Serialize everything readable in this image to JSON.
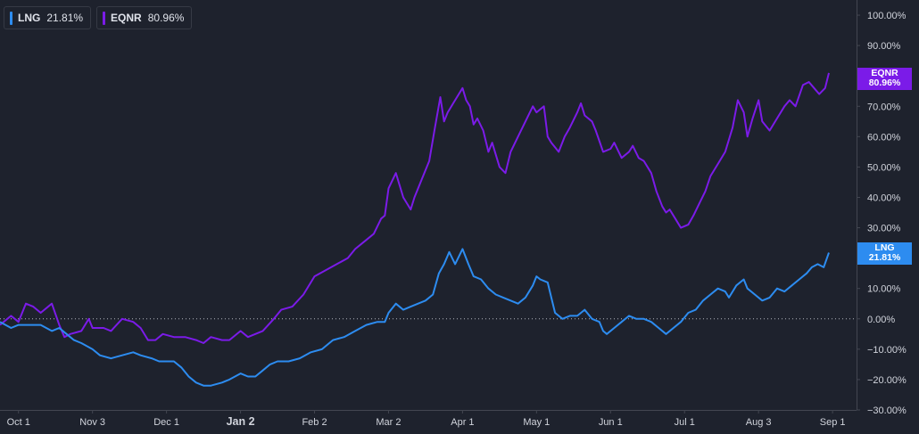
{
  "legend": [
    {
      "name": "LNG",
      "value": "21.81%",
      "color": "#2d8cf0"
    },
    {
      "name": "EQNR",
      "value": "80.96%",
      "color": "#7b1be8"
    }
  ],
  "tags": {
    "eqnr": {
      "name": "EQNR",
      "value": "80.96%"
    },
    "lng": {
      "name": "LNG",
      "value": "21.81%"
    }
  },
  "chart_data": {
    "type": "line",
    "xlim": [
      -0.25,
      11.3
    ],
    "ylim": [
      -30,
      105
    ],
    "y_ticks": [
      100,
      90,
      80,
      70,
      60,
      50,
      40,
      30,
      20,
      10,
      0,
      -10,
      -20,
      -30
    ],
    "y_tick_labels": [
      "100.00%",
      "90.00%",
      "80.00%",
      "70.00%",
      "60.00%",
      "50.00%",
      "40.00%",
      "30.00%",
      "20.00%",
      "10.00%",
      "0.00%",
      "−10.00%",
      "−20.00%",
      "−30.00%"
    ],
    "x_ticks": [
      {
        "x": 0,
        "label": "Oct 1"
      },
      {
        "x": 1,
        "label": "Nov 3"
      },
      {
        "x": 2,
        "label": "Dec 1"
      },
      {
        "x": 3,
        "label": "Jan 2",
        "bold": true
      },
      {
        "x": 4,
        "label": "Feb 2"
      },
      {
        "x": 5,
        "label": "Mar 2"
      },
      {
        "x": 6,
        "label": "Apr 1"
      },
      {
        "x": 7,
        "label": "May 1"
      },
      {
        "x": 8,
        "label": "Jun 1"
      },
      {
        "x": 9,
        "label": "Jul 1"
      },
      {
        "x": 10,
        "label": "Aug 3"
      },
      {
        "x": 11,
        "label": "Sep 1"
      }
    ],
    "baseline": 0,
    "series": [
      {
        "name": "EQNR",
        "color": "#7b1be8",
        "last_value": 80.96,
        "points": [
          [
            -0.25,
            -2
          ],
          [
            -0.1,
            1
          ],
          [
            0,
            -1
          ],
          [
            0.1,
            5
          ],
          [
            0.2,
            4
          ],
          [
            0.3,
            2
          ],
          [
            0.45,
            5
          ],
          [
            0.55,
            -2
          ],
          [
            0.62,
            -6
          ],
          [
            0.7,
            -5
          ],
          [
            0.85,
            -4
          ],
          [
            0.95,
            0
          ],
          [
            1.0,
            -3
          ],
          [
            1.15,
            -3
          ],
          [
            1.25,
            -4
          ],
          [
            1.4,
            0
          ],
          [
            1.55,
            -1
          ],
          [
            1.65,
            -3
          ],
          [
            1.75,
            -7
          ],
          [
            1.85,
            -7
          ],
          [
            1.95,
            -5
          ],
          [
            2.1,
            -6
          ],
          [
            2.25,
            -6
          ],
          [
            2.4,
            -7
          ],
          [
            2.5,
            -8
          ],
          [
            2.6,
            -6
          ],
          [
            2.75,
            -7
          ],
          [
            2.85,
            -7
          ],
          [
            3.0,
            -4
          ],
          [
            3.1,
            -6
          ],
          [
            3.2,
            -5
          ],
          [
            3.3,
            -4
          ],
          [
            3.45,
            0
          ],
          [
            3.55,
            3
          ],
          [
            3.7,
            4
          ],
          [
            3.85,
            8
          ],
          [
            4.0,
            14
          ],
          [
            4.15,
            16
          ],
          [
            4.3,
            18
          ],
          [
            4.45,
            20
          ],
          [
            4.55,
            23
          ],
          [
            4.7,
            26
          ],
          [
            4.8,
            28
          ],
          [
            4.9,
            33
          ],
          [
            4.95,
            34
          ],
          [
            5.0,
            43
          ],
          [
            5.1,
            48
          ],
          [
            5.2,
            40
          ],
          [
            5.3,
            36
          ],
          [
            5.35,
            40
          ],
          [
            5.45,
            46
          ],
          [
            5.55,
            52
          ],
          [
            5.62,
            62
          ],
          [
            5.7,
            73
          ],
          [
            5.75,
            65
          ],
          [
            5.8,
            68
          ],
          [
            5.9,
            72
          ],
          [
            6.0,
            76
          ],
          [
            6.05,
            72
          ],
          [
            6.1,
            70
          ],
          [
            6.15,
            64
          ],
          [
            6.2,
            66
          ],
          [
            6.28,
            62
          ],
          [
            6.35,
            55
          ],
          [
            6.4,
            58
          ],
          [
            6.5,
            50
          ],
          [
            6.58,
            48
          ],
          [
            6.65,
            55
          ],
          [
            6.75,
            60
          ],
          [
            6.85,
            65
          ],
          [
            6.95,
            70
          ],
          [
            7.0,
            68
          ],
          [
            7.1,
            70
          ],
          [
            7.15,
            60
          ],
          [
            7.2,
            58
          ],
          [
            7.3,
            55
          ],
          [
            7.38,
            60
          ],
          [
            7.45,
            63
          ],
          [
            7.55,
            68
          ],
          [
            7.6,
            71
          ],
          [
            7.65,
            67
          ],
          [
            7.75,
            65
          ],
          [
            7.8,
            62
          ],
          [
            7.9,
            55
          ],
          [
            8.0,
            56
          ],
          [
            8.05,
            58
          ],
          [
            8.15,
            53
          ],
          [
            8.25,
            55
          ],
          [
            8.3,
            57
          ],
          [
            8.38,
            53
          ],
          [
            8.45,
            52
          ],
          [
            8.55,
            48
          ],
          [
            8.62,
            42
          ],
          [
            8.7,
            37
          ],
          [
            8.75,
            35
          ],
          [
            8.8,
            36
          ],
          [
            8.9,
            32
          ],
          [
            8.95,
            30
          ],
          [
            9.05,
            31
          ],
          [
            9.12,
            34
          ],
          [
            9.2,
            38
          ],
          [
            9.28,
            42
          ],
          [
            9.35,
            47
          ],
          [
            9.45,
            51
          ],
          [
            9.55,
            55
          ],
          [
            9.65,
            63
          ],
          [
            9.72,
            72
          ],
          [
            9.8,
            68
          ],
          [
            9.85,
            60
          ],
          [
            9.92,
            66
          ],
          [
            10.0,
            72
          ],
          [
            10.05,
            65
          ],
          [
            10.15,
            62
          ],
          [
            10.25,
            66
          ],
          [
            10.35,
            70
          ],
          [
            10.42,
            72
          ],
          [
            10.5,
            70
          ],
          [
            10.6,
            77
          ],
          [
            10.68,
            78
          ],
          [
            10.75,
            76
          ],
          [
            10.82,
            74
          ],
          [
            10.9,
            76
          ],
          [
            10.95,
            80.96
          ]
        ]
      },
      {
        "name": "LNG",
        "color": "#2d8cf0",
        "last_value": 21.81,
        "points": [
          [
            -0.25,
            -1
          ],
          [
            -0.1,
            -3
          ],
          [
            0,
            -2
          ],
          [
            0.15,
            -2
          ],
          [
            0.3,
            -2
          ],
          [
            0.45,
            -4
          ],
          [
            0.55,
            -3
          ],
          [
            0.65,
            -5
          ],
          [
            0.75,
            -7
          ],
          [
            0.85,
            -8
          ],
          [
            1.0,
            -10
          ],
          [
            1.1,
            -12
          ],
          [
            1.25,
            -13
          ],
          [
            1.4,
            -12
          ],
          [
            1.55,
            -11
          ],
          [
            1.65,
            -12
          ],
          [
            1.8,
            -13
          ],
          [
            1.9,
            -14
          ],
          [
            2.0,
            -14
          ],
          [
            2.1,
            -14
          ],
          [
            2.2,
            -16
          ],
          [
            2.3,
            -19
          ],
          [
            2.4,
            -21
          ],
          [
            2.5,
            -22
          ],
          [
            2.6,
            -22
          ],
          [
            2.75,
            -21
          ],
          [
            2.85,
            -20
          ],
          [
            3.0,
            -18
          ],
          [
            3.1,
            -19
          ],
          [
            3.2,
            -19
          ],
          [
            3.3,
            -17
          ],
          [
            3.4,
            -15
          ],
          [
            3.5,
            -14
          ],
          [
            3.65,
            -14
          ],
          [
            3.8,
            -13
          ],
          [
            3.95,
            -11
          ],
          [
            4.1,
            -10
          ],
          [
            4.25,
            -7
          ],
          [
            4.4,
            -6
          ],
          [
            4.55,
            -4
          ],
          [
            4.7,
            -2
          ],
          [
            4.85,
            -1
          ],
          [
            4.95,
            -1
          ],
          [
            5.0,
            2
          ],
          [
            5.1,
            5
          ],
          [
            5.2,
            3
          ],
          [
            5.3,
            4
          ],
          [
            5.4,
            5
          ],
          [
            5.5,
            6
          ],
          [
            5.6,
            8
          ],
          [
            5.68,
            15
          ],
          [
            5.75,
            18
          ],
          [
            5.82,
            22
          ],
          [
            5.9,
            18
          ],
          [
            6.0,
            23
          ],
          [
            6.08,
            18
          ],
          [
            6.15,
            14
          ],
          [
            6.25,
            13
          ],
          [
            6.35,
            10
          ],
          [
            6.45,
            8
          ],
          [
            6.55,
            7
          ],
          [
            6.65,
            6
          ],
          [
            6.75,
            5
          ],
          [
            6.85,
            7
          ],
          [
            6.95,
            11
          ],
          [
            7.0,
            14
          ],
          [
            7.05,
            13
          ],
          [
            7.15,
            12
          ],
          [
            7.2,
            7
          ],
          [
            7.25,
            2
          ],
          [
            7.35,
            0
          ],
          [
            7.45,
            1
          ],
          [
            7.55,
            1
          ],
          [
            7.65,
            3
          ],
          [
            7.75,
            0
          ],
          [
            7.85,
            -1
          ],
          [
            7.9,
            -4
          ],
          [
            7.95,
            -5
          ],
          [
            8.05,
            -3
          ],
          [
            8.15,
            -1
          ],
          [
            8.25,
            1
          ],
          [
            8.35,
            0
          ],
          [
            8.45,
            0
          ],
          [
            8.55,
            -1
          ],
          [
            8.65,
            -3
          ],
          [
            8.75,
            -5
          ],
          [
            8.85,
            -3
          ],
          [
            8.95,
            -1
          ],
          [
            9.05,
            2
          ],
          [
            9.15,
            3
          ],
          [
            9.25,
            6
          ],
          [
            9.35,
            8
          ],
          [
            9.45,
            10
          ],
          [
            9.55,
            9
          ],
          [
            9.6,
            7
          ],
          [
            9.7,
            11
          ],
          [
            9.8,
            13
          ],
          [
            9.85,
            10
          ],
          [
            9.95,
            8
          ],
          [
            10.05,
            6
          ],
          [
            10.15,
            7
          ],
          [
            10.25,
            10
          ],
          [
            10.35,
            9
          ],
          [
            10.45,
            11
          ],
          [
            10.55,
            13
          ],
          [
            10.65,
            15
          ],
          [
            10.72,
            17
          ],
          [
            10.8,
            18
          ],
          [
            10.88,
            17
          ],
          [
            10.95,
            21.81
          ]
        ]
      }
    ]
  }
}
